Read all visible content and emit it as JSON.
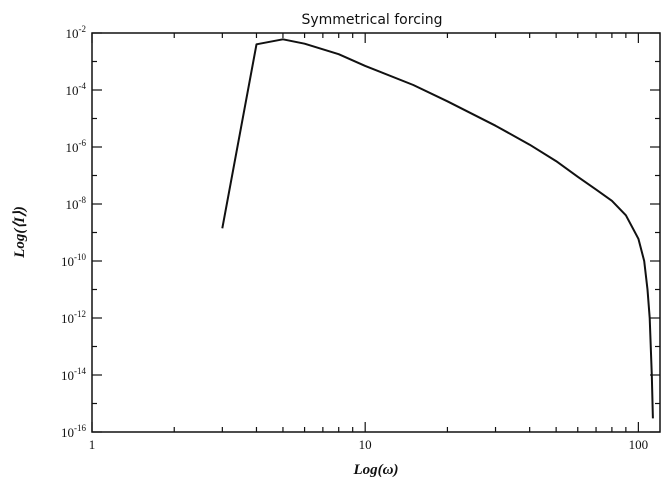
{
  "chart_data": {
    "type": "line",
    "title": "Symmetrical forcing",
    "xlabel": "Log(ω)",
    "ylabel": "Log(⟨I⟩)",
    "x_scale": "log",
    "y_scale": "log",
    "xlim": [
      1,
      120
    ],
    "ylim": [
      1e-16,
      0.01
    ],
    "x_ticks": [
      {
        "value": 1,
        "label": "1"
      },
      {
        "value": 10,
        "label": "10"
      },
      {
        "value": 100,
        "label": "100"
      }
    ],
    "y_ticks": [
      {
        "value": 0.01,
        "base": "10",
        "exp": "-2"
      },
      {
        "value": 0.0001,
        "base": "10",
        "exp": "-4"
      },
      {
        "value": 1e-06,
        "base": "10",
        "exp": "-6"
      },
      {
        "value": 1e-08,
        "base": "10",
        "exp": "-8"
      },
      {
        "value": 1e-10,
        "base": "10",
        "exp": "-10"
      },
      {
        "value": 1e-12,
        "base": "10",
        "exp": "-12"
      },
      {
        "value": 1e-14,
        "base": "10",
        "exp": "-14"
      },
      {
        "value": 1e-16,
        "base": "10",
        "exp": "-16"
      }
    ],
    "grid": false,
    "series": [
      {
        "x": [
          3,
          4,
          5,
          6,
          8,
          10,
          15,
          20,
          30,
          40,
          50,
          60,
          70,
          80,
          90,
          100,
          105,
          108,
          110,
          112,
          113
        ],
        "y": [
          1.4e-09,
          0.004,
          0.006,
          0.0042,
          0.0018,
          0.0007,
          0.00015,
          4e-05,
          5.6e-06,
          1.2e-06,
          3.2e-07,
          9e-08,
          3.2e-08,
          1.3e-08,
          4e-09,
          6e-10,
          1e-10,
          1e-11,
          1e-12,
          1e-14,
          3e-16
        ]
      }
    ]
  }
}
